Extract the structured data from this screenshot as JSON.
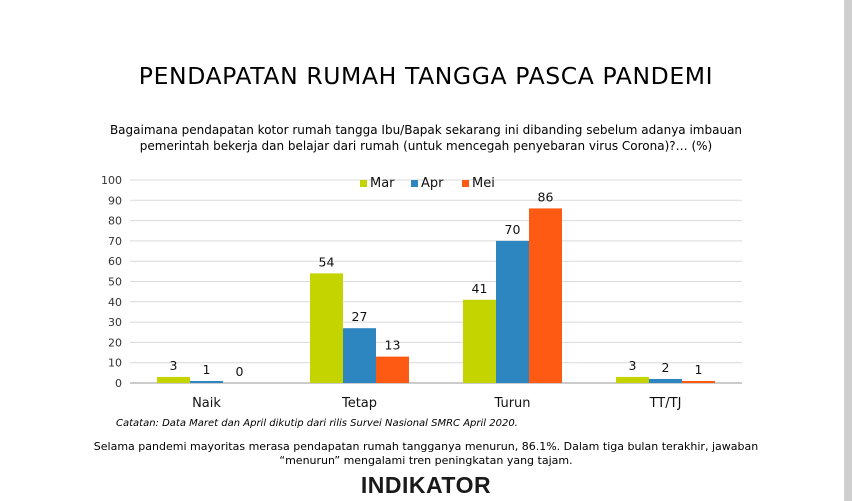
{
  "title": "PENDAPATAN RUMAH TANGGA PASCA PANDEMI",
  "question_line1": "Bagaimana pendapatan kotor rumah tangga Ibu/Bapak sekarang ini dibanding sebelum adanya imbauan",
  "question_line2": "pemerintah bekerja dan belajar dari rumah (untuk mencegah penyebaran virus Corona)?… (%)",
  "note": "Catatan: Data Maret dan April dikutip dari rilis Survei Nasional SMRC April 2020.",
  "summary_line1": "Selama pandemi mayoritas merasa pendapatan rumah tangganya menurun, 86.1%. Dalam tiga bulan terakhir, jawaban",
  "summary_line2": "“menurun” mengalami tren peningkatan yang tajam.",
  "logo_text": "INDIKATOR",
  "chart_data": {
    "type": "bar",
    "categories": [
      "Naik",
      "Tetap",
      "Turun",
      "TT/TJ"
    ],
    "series": [
      {
        "name": "Mar",
        "color": "#c3d400",
        "values": [
          3,
          54,
          41,
          3
        ]
      },
      {
        "name": "Apr",
        "color": "#2e86c1",
        "values": [
          1,
          27,
          70,
          2
        ]
      },
      {
        "name": "Mei",
        "color": "#ff5a14",
        "values": [
          0,
          13,
          86,
          1
        ]
      }
    ],
    "ylim": [
      0,
      100
    ],
    "yticks": [
      0,
      10,
      20,
      30,
      40,
      50,
      60,
      70,
      80,
      90,
      100
    ],
    "grid": true,
    "legend": "top-center",
    "data_labels": true
  }
}
